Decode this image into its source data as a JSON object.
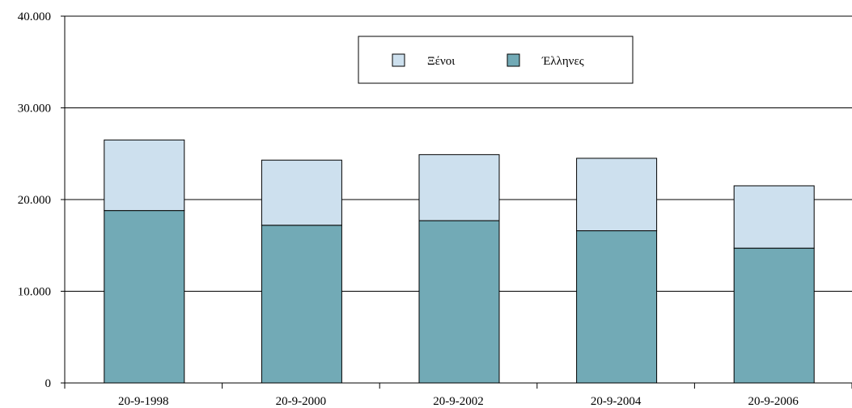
{
  "chart_data": {
    "type": "bar",
    "stacked": true,
    "categories": [
      "20-9-1998",
      "20-9-2000",
      "20-9-2002",
      "20-9-2004",
      "20-9-2006"
    ],
    "series": [
      {
        "name": "Έλληνες",
        "values": [
          18800,
          17200,
          17700,
          16600,
          14700
        ],
        "color": "#72aab6"
      },
      {
        "name": "Ξένοι",
        "values": [
          7700,
          7100,
          7200,
          7900,
          6800
        ],
        "color": "#cde0ee"
      }
    ],
    "ylim": [
      0,
      40000
    ],
    "yticks": [
      0,
      10000,
      20000,
      30000,
      40000
    ],
    "ytick_labels": [
      "0",
      "10.000",
      "20.000",
      "30.000",
      "40.000"
    ],
    "grid": true,
    "legend": {
      "position": "top-center",
      "order": [
        "Ξένοι",
        "Έλληνες"
      ]
    }
  }
}
